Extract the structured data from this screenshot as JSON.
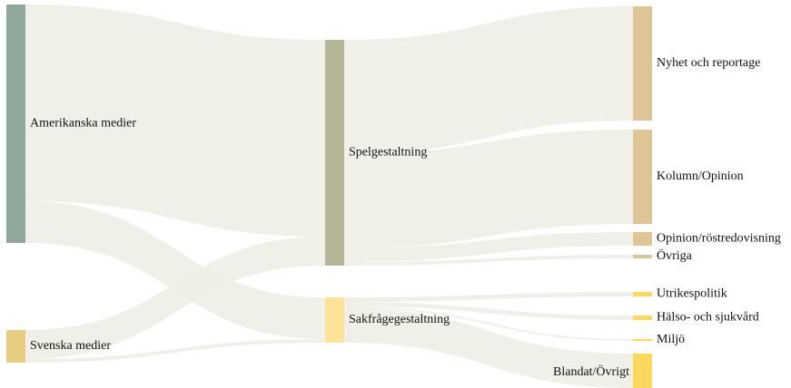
{
  "chart_data": {
    "type": "sankey",
    "nodes": [
      {
        "name": "Amerikanska medier",
        "color": "#8fa89b"
      },
      {
        "name": "Svenska medier",
        "color": "#e6cd82"
      },
      {
        "name": "Spelgestaltning",
        "color": "#b5b598"
      },
      {
        "name": "Sakfrågegestaltning",
        "color": "#fde39a"
      },
      {
        "name": "Nyhet och reportage",
        "color": "#dfc596"
      },
      {
        "name": "Kolumn/Opinion",
        "color": "#dfc596"
      },
      {
        "name": "Opinion/röstredovisning",
        "color": "#dfc596"
      },
      {
        "name": "Övriga",
        "color": "#dfc596"
      },
      {
        "name": "Utrikespolitik",
        "color": "#fcd95b"
      },
      {
        "name": "Hälso- och sjukvård",
        "color": "#fcd95b"
      },
      {
        "name": "Miljö",
        "color": "#fcd95b"
      },
      {
        "name": "Blandat/Övrigt",
        "color": "#fcd95b"
      }
    ],
    "links": [
      {
        "source": 0,
        "target": 2,
        "value": 217
      },
      {
        "source": 0,
        "target": 3,
        "value": 46
      },
      {
        "source": 1,
        "target": 2,
        "value": 32
      },
      {
        "source": 1,
        "target": 3,
        "value": 4
      },
      {
        "source": 2,
        "target": 4,
        "value": 126
      },
      {
        "source": 2,
        "target": 5,
        "value": 104
      },
      {
        "source": 2,
        "target": 6,
        "value": 15
      },
      {
        "source": 2,
        "target": 7,
        "value": 4
      },
      {
        "source": 3,
        "target": 8,
        "value": 5
      },
      {
        "source": 3,
        "target": 9,
        "value": 5
      },
      {
        "source": 3,
        "target": 10,
        "value": 2
      },
      {
        "source": 3,
        "target": 11,
        "value": 38
      }
    ],
    "link_color": "#f0eee6"
  }
}
